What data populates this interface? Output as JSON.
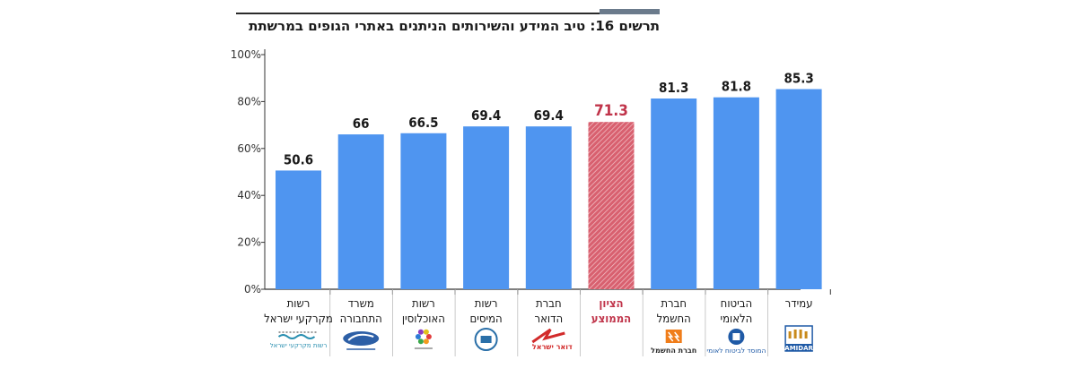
{
  "title": {
    "prefix": "תרשים 16:",
    "text": " טיב המידע והשירותים הניתנים באתרי הגופים במרשתת"
  },
  "colors": {
    "bar": "#4f95f0",
    "highlight": "#c0344a",
    "axis": "#333333",
    "value_text": "#1a1a1a",
    "label_text": "#1a1a1a"
  },
  "chart_data": {
    "type": "bar",
    "title": "תרשים 16: טיב המידע והשירותים הניתנים באתרי הגופים במרשתת",
    "ylim": [
      0,
      100
    ],
    "yticks": [
      "0%",
      "20%",
      "40%",
      "60%",
      "80%",
      "100%"
    ],
    "ytick_values": [
      0,
      20,
      40,
      60,
      80,
      100
    ],
    "grid": false,
    "highlight_index": 5,
    "categories": [
      [
        "רשות",
        "מקרקעי ישראל"
      ],
      [
        "משרד",
        "התחבורה"
      ],
      [
        "רשות",
        "האוכלוסין"
      ],
      [
        "רשות",
        "המיסים"
      ],
      [
        "חברת",
        "הדואר"
      ],
      [
        "הציון",
        "הממוצע"
      ],
      [
        "חברת",
        "החשמל"
      ],
      [
        "הביטוח",
        "הלאומי"
      ],
      [
        "עמידר"
      ]
    ],
    "values": [
      50.6,
      66,
      66.5,
      69.4,
      69.4,
      71.3,
      81.3,
      81.8,
      85.3
    ],
    "value_labels": [
      "50.6",
      "66",
      "66.5",
      "69.4",
      "69.4",
      "71.3",
      "81.3",
      "81.8",
      "85.3"
    ],
    "logos": [
      {
        "icon": "israel-land-authority-logo",
        "text": "רשות מקרקעי ישראל"
      },
      {
        "icon": "ministry-of-transport-logo",
        "text": "משרד התחבורה"
      },
      {
        "icon": "population-authority-logo",
        "text": ""
      },
      {
        "icon": "tax-authority-logo",
        "text": ""
      },
      {
        "icon": "israel-post-logo",
        "text": "דואר ישראל"
      },
      null,
      {
        "icon": "electric-company-logo",
        "text": "חברת החשמל"
      },
      {
        "icon": "national-insurance-logo",
        "text": "המוסד לביטוח לאומי"
      },
      {
        "icon": "amidar-logo",
        "text": "AMIDAR"
      }
    ]
  }
}
